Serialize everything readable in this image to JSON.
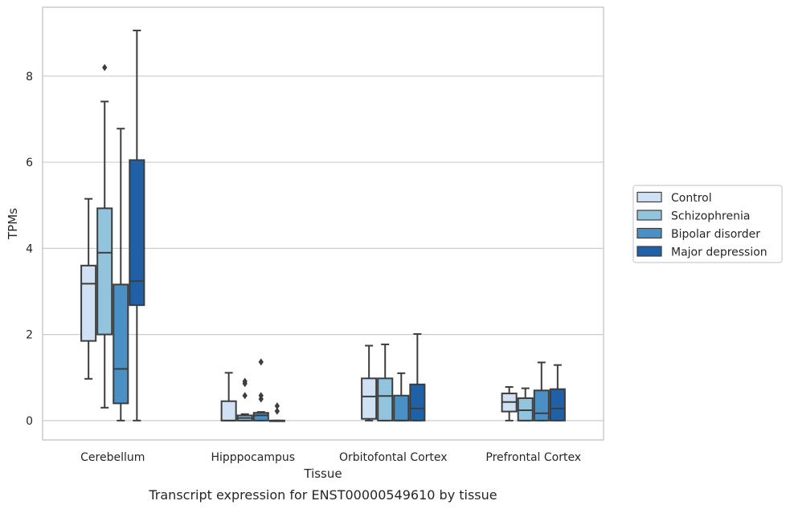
{
  "chart_data": {
    "type": "box",
    "title": "",
    "caption": "Transcript expression for ENST00000549610 by tissue",
    "xlabel": "Tissue",
    "ylabel": "TPMs",
    "ylim": [
      -0.45,
      9.6
    ],
    "yticks": [
      0,
      2,
      4,
      6,
      8
    ],
    "grid": true,
    "legend_position": "right",
    "categories": [
      "Cerebellum",
      "Hipppocampus",
      "Orbitofontal Cortex",
      "Prefrontal Cortex"
    ],
    "series": [
      {
        "name": "Control",
        "color": "#cfe1f2",
        "boxes": [
          {
            "whislo": 0.97,
            "q1": 1.85,
            "med": 3.18,
            "q3": 3.6,
            "whishi": 5.15,
            "fliers": []
          },
          {
            "whislo": 0.0,
            "q1": 0.0,
            "med": 0.0,
            "q3": 0.45,
            "whishi": 1.11,
            "fliers": []
          },
          {
            "whislo": 0.0,
            "q1": 0.04,
            "med": 0.56,
            "q3": 0.98,
            "whishi": 1.74,
            "fliers": []
          },
          {
            "whislo": 0.0,
            "q1": 0.21,
            "med": 0.43,
            "q3": 0.63,
            "whishi": 0.78,
            "fliers": []
          }
        ]
      },
      {
        "name": "Schizophrenia",
        "color": "#93c4de",
        "boxes": [
          {
            "whislo": 0.3,
            "q1": 2.0,
            "med": 3.9,
            "q3": 4.93,
            "whishi": 7.41,
            "fliers": [
              8.2
            ]
          },
          {
            "whislo": 0.0,
            "q1": 0.0,
            "med": 0.06,
            "q3": 0.12,
            "whishi": 0.15,
            "fliers": [
              0.58,
              0.86,
              0.91
            ]
          },
          {
            "whislo": 0.0,
            "q1": 0.0,
            "med": 0.57,
            "q3": 0.98,
            "whishi": 1.77,
            "fliers": []
          },
          {
            "whislo": 0.0,
            "q1": 0.0,
            "med": 0.24,
            "q3": 0.52,
            "whishi": 0.75,
            "fliers": []
          }
        ]
      },
      {
        "name": "Bipolar disorder",
        "color": "#4a90c4",
        "boxes": [
          {
            "whislo": 0.0,
            "q1": 0.4,
            "med": 1.2,
            "q3": 3.16,
            "whishi": 6.78,
            "fliers": []
          },
          {
            "whislo": 0.0,
            "q1": 0.0,
            "med": 0.12,
            "q3": 0.18,
            "whishi": 0.2,
            "fliers": [
              0.5,
              0.58,
              1.36
            ]
          },
          {
            "whislo": 0.0,
            "q1": 0.0,
            "med": 0.0,
            "q3": 0.58,
            "whishi": 1.1,
            "fliers": []
          },
          {
            "whislo": 0.0,
            "q1": 0.0,
            "med": 0.17,
            "q3": 0.7,
            "whishi": 1.35,
            "fliers": []
          }
        ]
      },
      {
        "name": "Major depression",
        "color": "#2060a7",
        "boxes": [
          {
            "whislo": 0.0,
            "q1": 2.68,
            "med": 3.24,
            "q3": 6.05,
            "whishi": 9.06,
            "fliers": []
          },
          {
            "whislo": 0.0,
            "q1": 0.0,
            "med": 0.0,
            "q3": 0.0,
            "whishi": 0.0,
            "fliers": [
              0.22,
              0.34
            ]
          },
          {
            "whislo": 0.0,
            "q1": 0.0,
            "med": 0.28,
            "q3": 0.84,
            "whishi": 2.01,
            "fliers": []
          },
          {
            "whislo": 0.0,
            "q1": 0.0,
            "med": 0.28,
            "q3": 0.73,
            "whishi": 1.29,
            "fliers": []
          }
        ]
      }
    ]
  }
}
